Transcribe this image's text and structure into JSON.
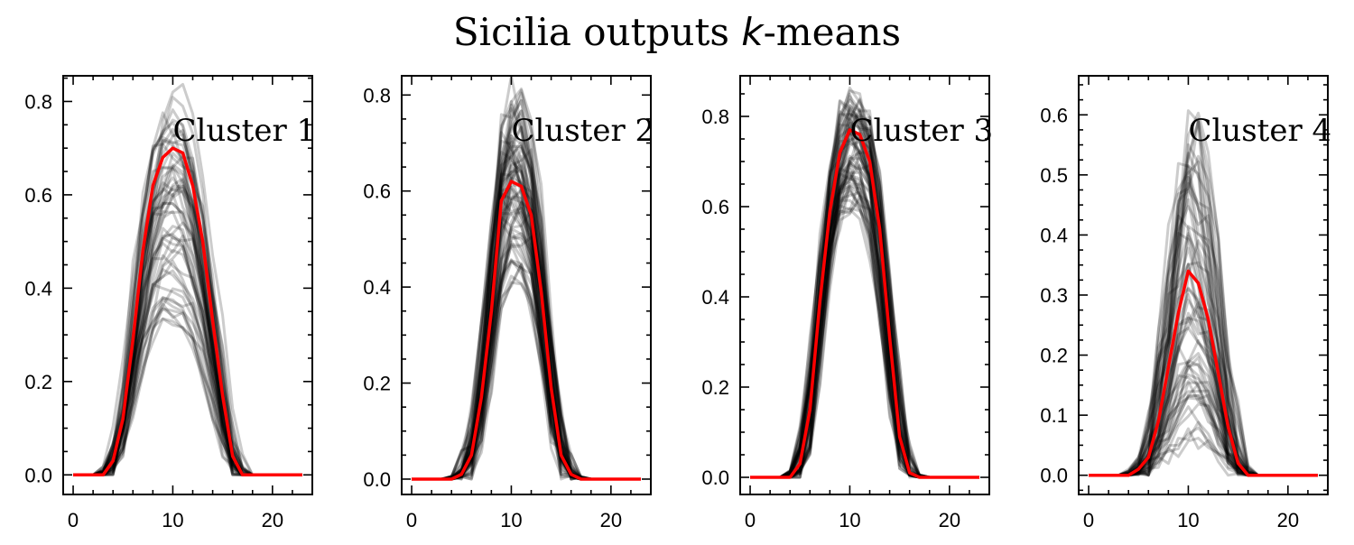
{
  "title_prefix": "Sicilia outputs ",
  "title_symbol": "k",
  "title_suffix": "-means",
  "colors": {
    "members": "#000000",
    "centroid": "#ff0000"
  },
  "chart_data": [
    {
      "type": "line",
      "label": "Cluster 1",
      "xlim": [
        -1,
        24
      ],
      "ylim": [
        -0.042,
        0.855
      ],
      "xticks": [
        0,
        10,
        20
      ],
      "yticks": [
        0.0,
        0.2,
        0.4,
        0.6,
        0.8
      ],
      "ytick_decimals": 1,
      "x": [
        0,
        1,
        2,
        3,
        4,
        5,
        6,
        7,
        8,
        9,
        10,
        11,
        12,
        13,
        14,
        15,
        16,
        17,
        18,
        19,
        20,
        21,
        22,
        23
      ],
      "centroid": [
        0,
        0,
        0,
        0,
        0.03,
        0.12,
        0.29,
        0.48,
        0.62,
        0.68,
        0.7,
        0.69,
        0.62,
        0.5,
        0.33,
        0.17,
        0.04,
        0,
        0,
        0,
        0,
        0,
        0,
        0
      ],
      "member_scale": [
        0.46,
        1.16
      ],
      "members": 55
    },
    {
      "type": "line",
      "label": "Cluster 2",
      "xlim": [
        -1,
        24
      ],
      "ylim": [
        -0.032,
        0.84
      ],
      "xticks": [
        0,
        10,
        20
      ],
      "yticks": [
        0.0,
        0.2,
        0.4,
        0.6,
        0.8
      ],
      "ytick_decimals": 1,
      "x": [
        0,
        1,
        2,
        3,
        4,
        5,
        6,
        7,
        8,
        9,
        10,
        11,
        12,
        13,
        14,
        15,
        16,
        17,
        18,
        19,
        20,
        21,
        22,
        23
      ],
      "centroid": [
        0,
        0,
        0,
        0,
        0,
        0.01,
        0.05,
        0.17,
        0.35,
        0.58,
        0.62,
        0.61,
        0.55,
        0.39,
        0.19,
        0.05,
        0.01,
        0,
        0,
        0,
        0,
        0,
        0,
        0
      ],
      "member_scale": [
        0.68,
        1.29
      ],
      "members": 70
    },
    {
      "type": "line",
      "label": "Cluster 3",
      "xlim": [
        -1,
        24
      ],
      "ylim": [
        -0.038,
        0.89
      ],
      "xticks": [
        0,
        10,
        20
      ],
      "yticks": [
        0.0,
        0.2,
        0.4,
        0.6,
        0.8
      ],
      "ytick_decimals": 1,
      "x": [
        0,
        1,
        2,
        3,
        4,
        5,
        6,
        7,
        8,
        9,
        10,
        11,
        12,
        13,
        14,
        15,
        16,
        17,
        18,
        19,
        20,
        21,
        22,
        23
      ],
      "centroid": [
        0,
        0,
        0,
        0,
        0,
        0.03,
        0.15,
        0.39,
        0.59,
        0.72,
        0.77,
        0.76,
        0.7,
        0.55,
        0.31,
        0.09,
        0.01,
        0,
        0,
        0,
        0,
        0,
        0,
        0
      ],
      "member_scale": [
        0.8,
        1.1
      ],
      "members": 65
    },
    {
      "type": "line",
      "label": "Cluster 4",
      "xlim": [
        -1,
        24
      ],
      "ylim": [
        -0.032,
        0.665
      ],
      "xticks": [
        0,
        10,
        20
      ],
      "yticks": [
        0.0,
        0.1,
        0.2,
        0.3,
        0.4,
        0.5,
        0.6
      ],
      "ytick_decimals": 1,
      "x": [
        0,
        1,
        2,
        3,
        4,
        5,
        6,
        7,
        8,
        9,
        10,
        11,
        12,
        13,
        14,
        15,
        16,
        17,
        18,
        19,
        20,
        21,
        22,
        23
      ],
      "centroid": [
        0,
        0,
        0,
        0,
        0,
        0.01,
        0.03,
        0.09,
        0.18,
        0.27,
        0.34,
        0.32,
        0.26,
        0.17,
        0.08,
        0.02,
        0,
        0,
        0,
        0,
        0,
        0,
        0,
        0
      ],
      "member_scale": [
        0.15,
        1.85
      ],
      "members": 60
    }
  ]
}
